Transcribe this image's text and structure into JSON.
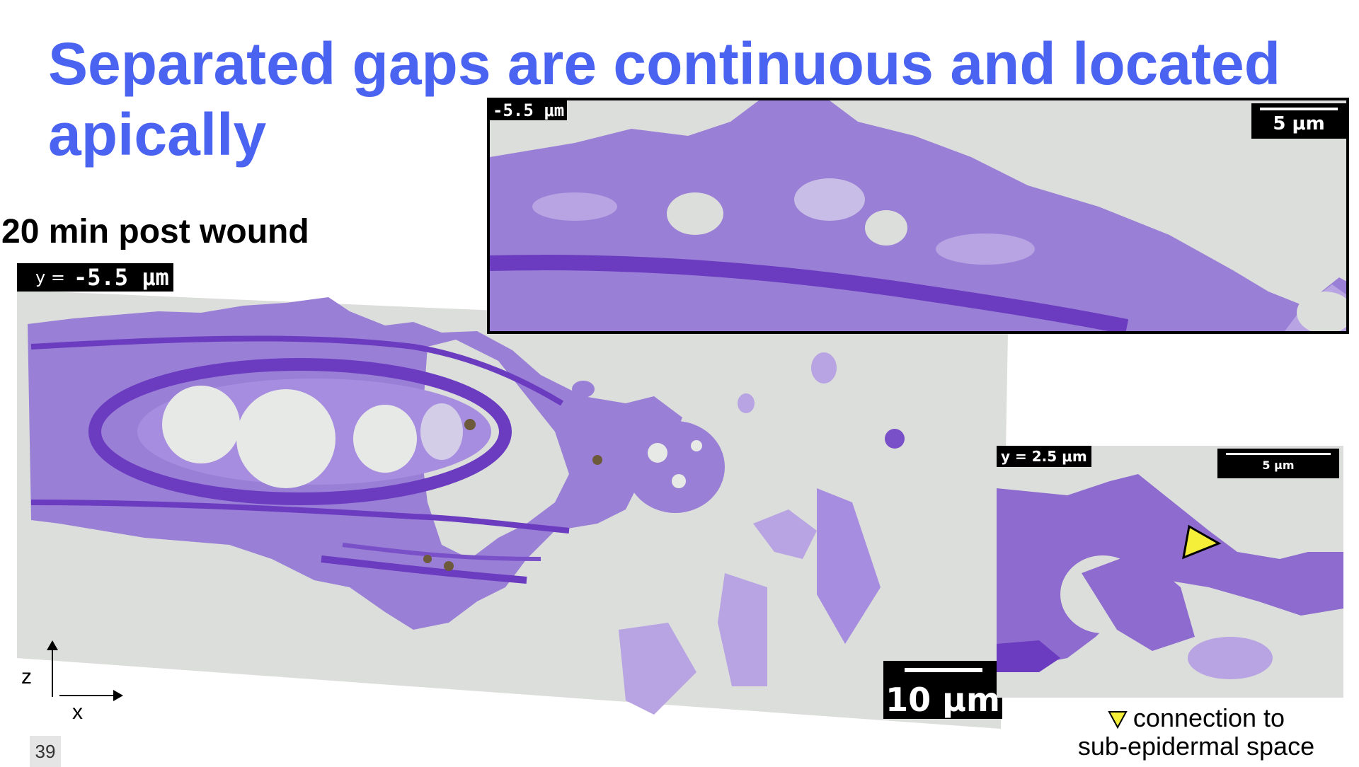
{
  "slide": {
    "title": "Separated gaps are continuous and located apically",
    "subtitle": "20 min post wound",
    "page_number": "39"
  },
  "main_image": {
    "y_label_prefix": "y =",
    "y_label_value": "-5.5 μm",
    "scale_bar": "10 μm",
    "axis_z": "z",
    "axis_x": "x"
  },
  "top_inset": {
    "depth_label": "-5.5 μm",
    "scale_bar": "5 μm"
  },
  "side_inset": {
    "depth_label": "y = 2.5 μm",
    "scale_bar": "5 μm"
  },
  "legend": {
    "marker_icon": "yellow-triangle-icon",
    "marker_color": "#f5ef3a",
    "text_line1": "connection to",
    "text_line2": "sub-epidermal space"
  },
  "colors": {
    "title": "#4a63f0",
    "tissue": "#8e6bcf",
    "tissue_dark": "#6b3cc0",
    "background_tissue": "#dcdedb"
  }
}
